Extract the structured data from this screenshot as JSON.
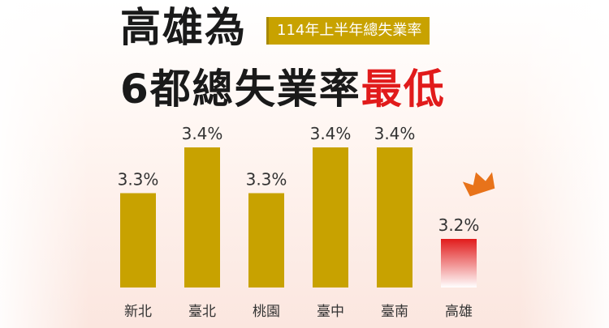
{
  "title": {
    "line1": "高雄為",
    "badge": "114年上半年總失業率",
    "line2_prefix": "6都總失業率",
    "line2_highlight": "最低"
  },
  "colors": {
    "bar": "#c8a200",
    "highlight_top": "#e11b1b",
    "highlight_bottom": "#ffffff",
    "crown": "#e8731a"
  },
  "icons": {
    "crown": "crown-icon"
  },
  "chart_data": {
    "type": "bar",
    "categories": [
      "新北",
      "臺北",
      "桃園",
      "臺中",
      "臺南",
      "高雄"
    ],
    "values": [
      3.3,
      3.4,
      3.3,
      3.4,
      3.4,
      3.2
    ],
    "value_labels": [
      "3.3%",
      "3.4%",
      "3.3%",
      "3.4%",
      "3.4%",
      "3.2%"
    ],
    "highlight_index": 5,
    "title": "114年上半年總失業率",
    "xlabel": "",
    "ylabel": "",
    "grid": false
  }
}
